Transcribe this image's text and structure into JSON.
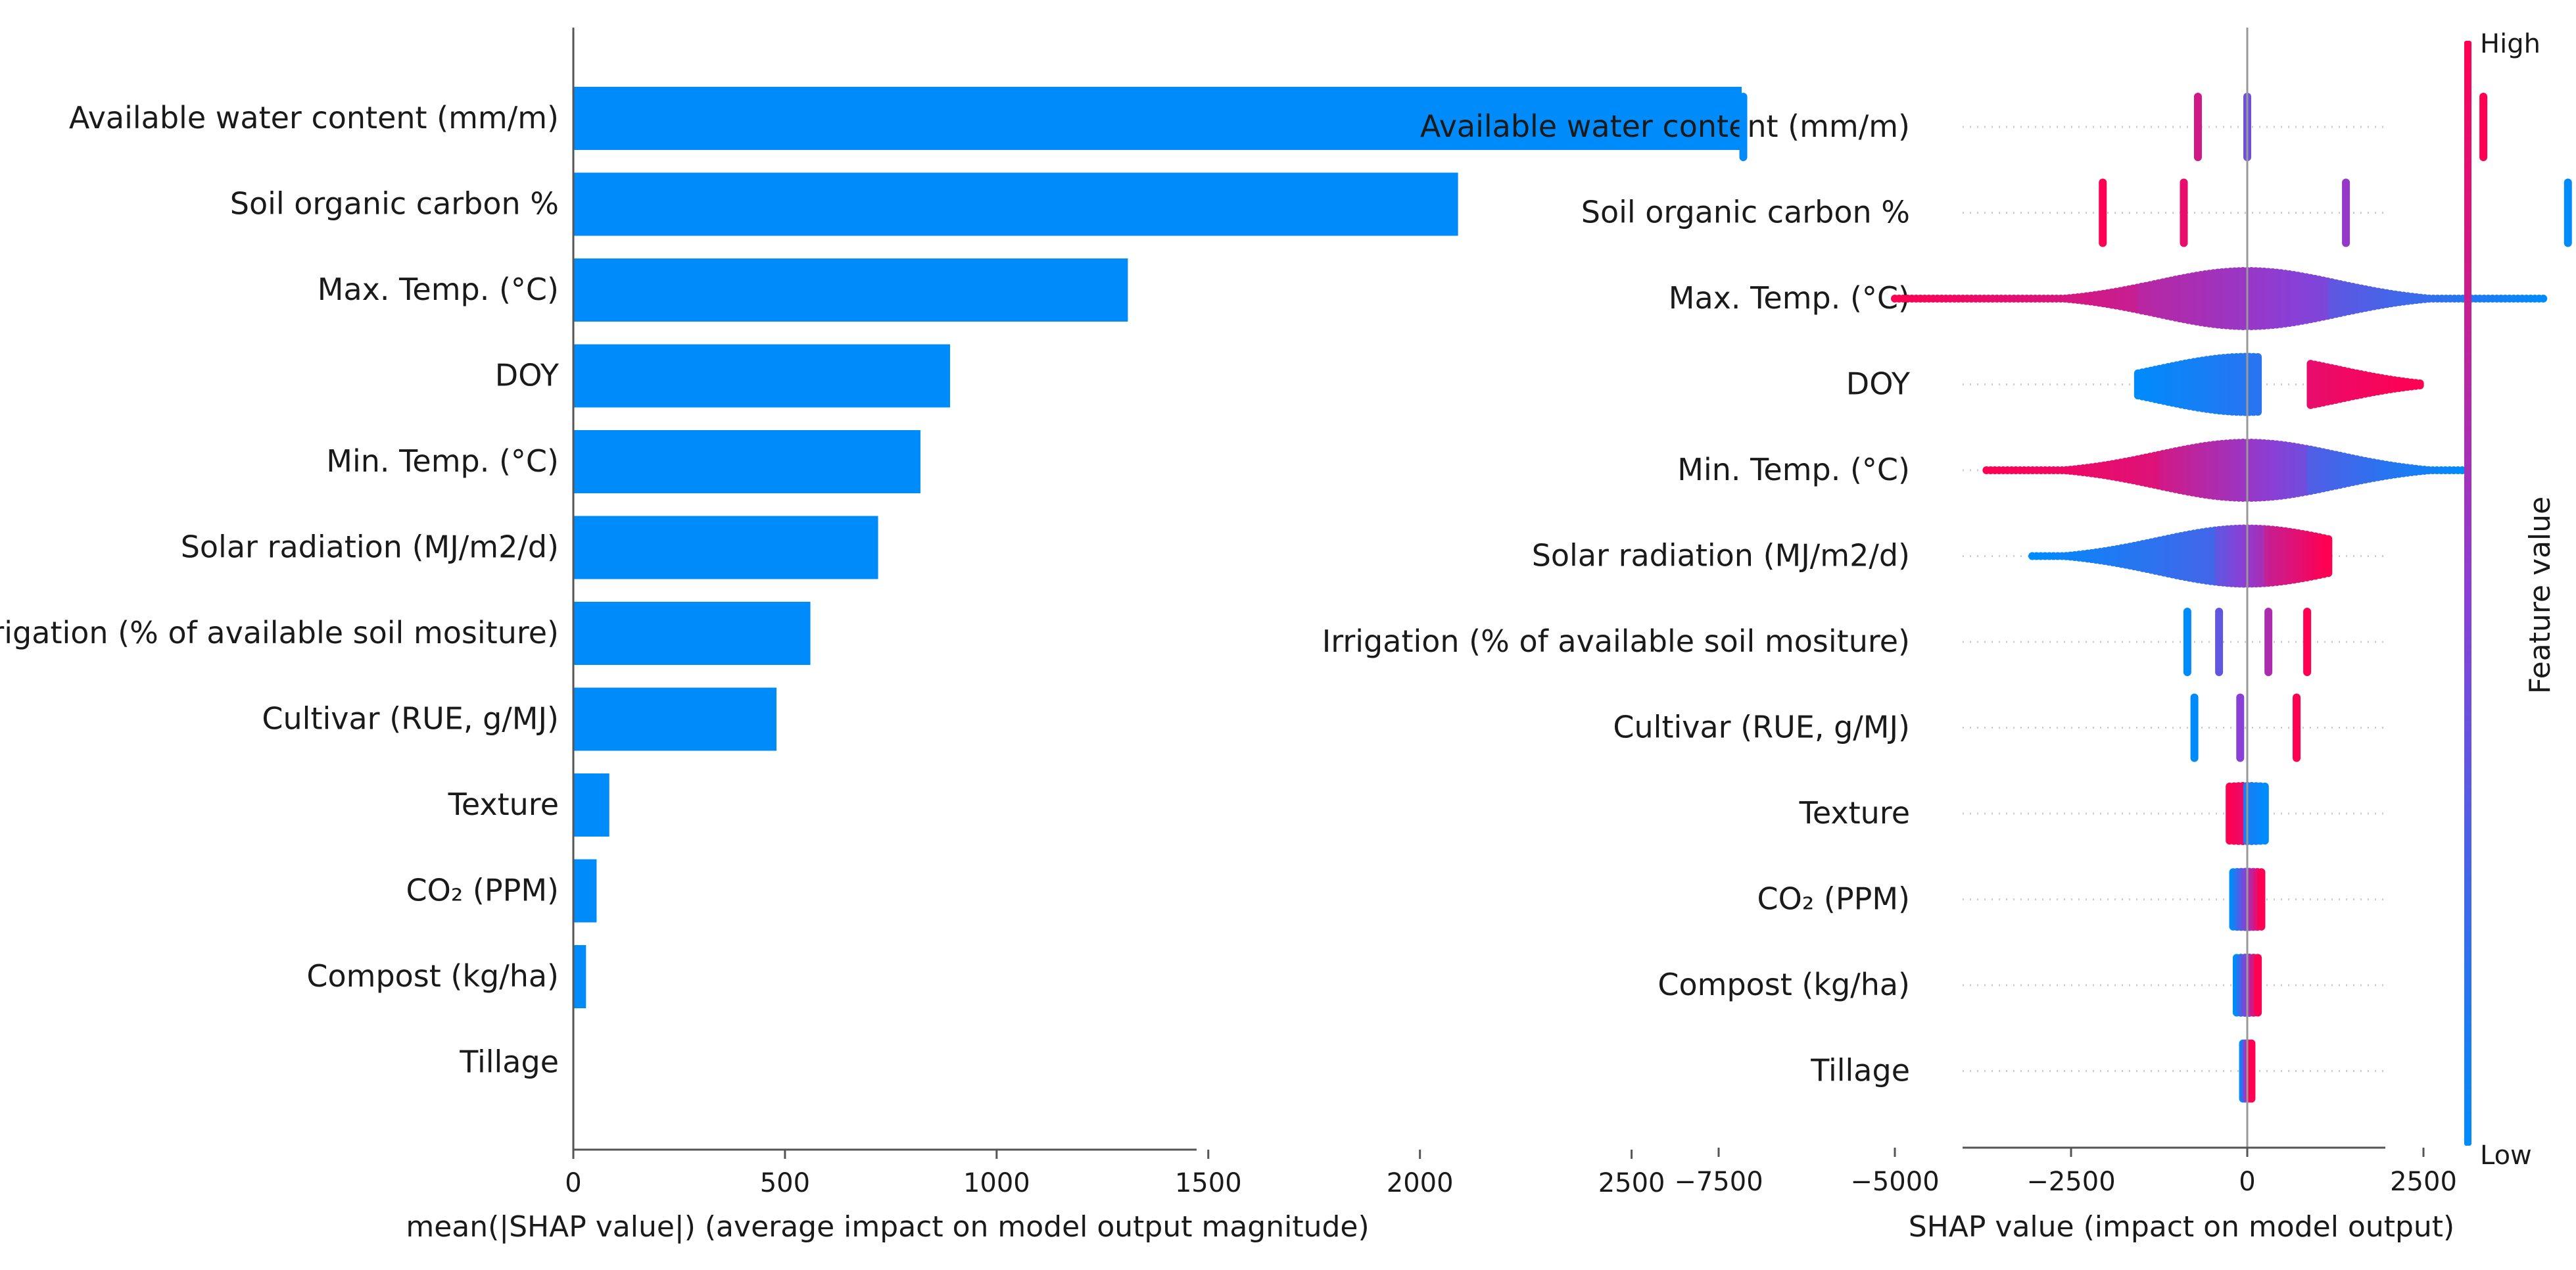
{
  "chart_data": [
    {
      "type": "bar",
      "orientation": "horizontal",
      "categories": [
        "Available water content (mm/m)",
        "Soil organic carbon %",
        "Max. Temp. (°C)",
        "DOY",
        "Min. Temp. (°C)",
        "Solar radiation (MJ/m2/d)",
        "Irrigation (% of available soil mositure)",
        "Cultivar (RUE, g/MJ)",
        "Texture",
        "CO₂ (PPM)",
        "Compost (kg/ha)",
        "Tillage"
      ],
      "values": [
        2760,
        2090,
        1310,
        890,
        820,
        720,
        560,
        480,
        85,
        55,
        30,
        0
      ],
      "xlabel": "mean(|SHAP value|) (average impact on model output magnitude)",
      "ylabel": "",
      "xlim": [
        0,
        2900
      ],
      "xticks": [
        0,
        500,
        1000,
        1500,
        2000,
        2500
      ],
      "grid": false,
      "colors": {
        "bar": "#008bfb"
      }
    },
    {
      "type": "scatter",
      "subtype": "beeswarm",
      "categories": [
        "Available water content (mm/m)",
        "Soil organic carbon %",
        "Max. Temp. (°C)",
        "DOY",
        "Min. Temp. (°C)",
        "Solar radiation (MJ/m2/d)",
        "Irrigation (% of available soil mositure)",
        "Cultivar (RUE, g/MJ)",
        "Texture",
        "CO₂ (PPM)",
        "Compost (kg/ha)",
        "Tillage"
      ],
      "xlabel": "SHAP value (impact on model output)",
      "xlim": [
        -8000,
        4800
      ],
      "xticks": [
        -7500,
        -5000,
        -2500,
        0,
        2500
      ],
      "xtick_labels": [
        "−7500",
        "−5000",
        "−2500",
        "0",
        "2500"
      ],
      "grid": false,
      "colorbar": {
        "label": "Feature value",
        "high_label": "High",
        "low_label": "Low",
        "low_color": "#008bfb",
        "high_color": "#ff0052"
      },
      "features": [
        {
          "name": "Available water content (mm/m)",
          "clusters": [
            {
              "x": [
                -7150,
                -7150
              ],
              "value": [
                0,
                0
              ]
            },
            {
              "x": [
                -700,
                -700
              ],
              "value": [
                0.8,
                0.8
              ]
            },
            {
              "x": [
                0,
                0
              ],
              "value": [
                0.4,
                0.4
              ]
            },
            {
              "x": [
                3350,
                3350
              ],
              "value": [
                1,
                1
              ]
            }
          ]
        },
        {
          "name": "Soil organic carbon %",
          "clusters": [
            {
              "x": [
                -2050,
                -2050
              ],
              "value": [
                1,
                1
              ]
            },
            {
              "x": [
                -900,
                -900
              ],
              "value": [
                0.9,
                0.9
              ]
            },
            {
              "x": [
                1400,
                1400
              ],
              "value": [
                0.55,
                0.55
              ]
            },
            {
              "x": [
                4550,
                4550
              ],
              "value": [
                0,
                0
              ]
            }
          ]
        },
        {
          "name": "Max. Temp. (°C)",
          "clusters": [
            {
              "x": [
                -5000,
                -1500
              ],
              "value": [
                1,
                0.75
              ]
            },
            {
              "x": [
                -1500,
                1200
              ],
              "value": [
                0.7,
                0.45
              ]
            },
            {
              "x": [
                1200,
                4200
              ],
              "value": [
                0.35,
                0
              ]
            }
          ]
        },
        {
          "name": "DOY",
          "clusters": [
            {
              "x": [
                -1550,
                150
              ],
              "value": [
                0,
                0.15
              ]
            },
            {
              "x": [
                900,
                2450
              ],
              "value": [
                0.9,
                1
              ]
            }
          ]
        },
        {
          "name": "Min. Temp. (°C)",
          "clusters": [
            {
              "x": [
                -3700,
                -1200
              ],
              "value": [
                1,
                0.85
              ]
            },
            {
              "x": [
                -1200,
                900
              ],
              "value": [
                0.8,
                0.4
              ]
            },
            {
              "x": [
                900,
                3050
              ],
              "value": [
                0.3,
                0
              ]
            }
          ]
        },
        {
          "name": "Solar radiation (MJ/m2/d)",
          "clusters": [
            {
              "x": [
                -3050,
                -400
              ],
              "value": [
                0,
                0.25
              ]
            },
            {
              "x": [
                -400,
                300
              ],
              "value": [
                0.35,
                0.65
              ]
            },
            {
              "x": [
                300,
                1150
              ],
              "value": [
                0.75,
                1
              ]
            }
          ]
        },
        {
          "name": "Irrigation (% of available soil mositure)",
          "clusters": [
            {
              "x": [
                -850,
                -850
              ],
              "value": [
                0,
                0
              ]
            },
            {
              "x": [
                -400,
                -400
              ],
              "value": [
                0.35,
                0.35
              ]
            },
            {
              "x": [
                300,
                300
              ],
              "value": [
                0.65,
                0.65
              ]
            },
            {
              "x": [
                850,
                850
              ],
              "value": [
                1,
                1
              ]
            }
          ]
        },
        {
          "name": "Cultivar (RUE, g/MJ)",
          "clusters": [
            {
              "x": [
                -750,
                -750
              ],
              "value": [
                0,
                0
              ]
            },
            {
              "x": [
                -100,
                -100
              ],
              "value": [
                0.5,
                0.5
              ]
            },
            {
              "x": [
                700,
                700
              ],
              "value": [
                1,
                1
              ]
            }
          ]
        },
        {
          "name": "Texture",
          "clusters": [
            {
              "x": [
                -250,
                0
              ],
              "value": [
                1,
                0.9
              ]
            },
            {
              "x": [
                0,
                250
              ],
              "value": [
                0.1,
                0
              ]
            }
          ]
        },
        {
          "name": "CO₂ (PPM)",
          "clusters": [
            {
              "x": [
                -200,
                200
              ],
              "value": [
                0,
                1
              ]
            }
          ]
        },
        {
          "name": "Compost (kg/ha)",
          "clusters": [
            {
              "x": [
                -150,
                150
              ],
              "value": [
                0,
                1
              ]
            }
          ]
        },
        {
          "name": "Tillage",
          "clusters": [
            {
              "x": [
                -60,
                60
              ],
              "value": [
                0,
                1
              ]
            }
          ]
        }
      ]
    }
  ]
}
